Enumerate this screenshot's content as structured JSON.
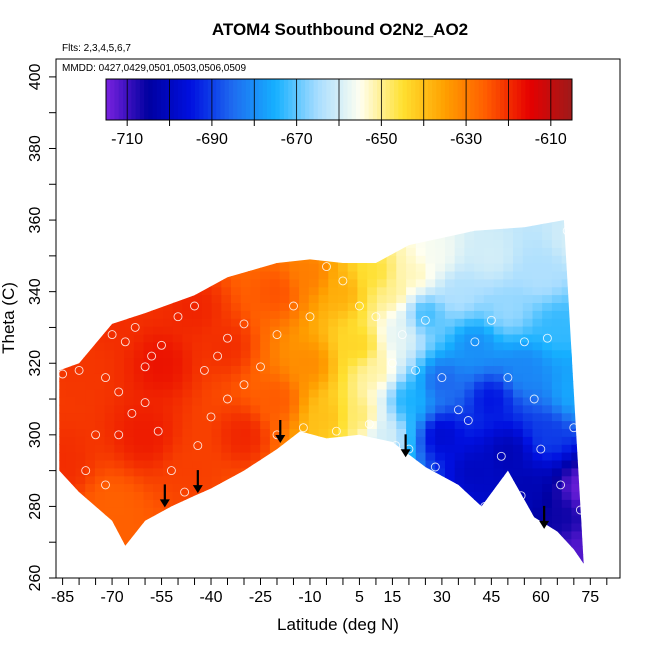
{
  "chart_data": {
    "type": "heatmap",
    "title": "ATOM4 Southbound O2N2_AO2",
    "flights_note": "Flts: 2,3,4,5,6,7",
    "dates_note": "MMDD: 0427,0429,0501,0503,0506,0509",
    "xlabel": "Latitude (deg N)",
    "ylabel": "Theta (C)",
    "xlim": [
      -87,
      84
    ],
    "ylim": [
      260,
      405
    ],
    "x_ticks": [
      -85,
      -70,
      -55,
      -40,
      -25,
      -10,
      5,
      15,
      30,
      45,
      60,
      75
    ],
    "y_ticks": [
      260,
      280,
      300,
      320,
      340,
      360,
      380,
      400
    ],
    "colorbar": {
      "min": -715,
      "max": -605,
      "ticks": [
        -710,
        -690,
        -670,
        -650,
        -630,
        -610
      ],
      "palette": [
        "#7a22e0",
        "#0000a0",
        "#0010e0",
        "#1e6cf0",
        "#16b0ff",
        "#a8ddff",
        "#fffff0",
        "#ffe030",
        "#ffa000",
        "#ff5a00",
        "#e60000",
        "#9e1a1a"
      ]
    },
    "boundary_top": [
      [
        -86,
        318
      ],
      [
        -80,
        320
      ],
      [
        -70,
        331
      ],
      [
        -60,
        334
      ],
      [
        -45,
        339
      ],
      [
        -35,
        344
      ],
      [
        -20,
        348
      ],
      [
        -10,
        349
      ],
      [
        0,
        348
      ],
      [
        10,
        348
      ],
      [
        20,
        353
      ],
      [
        30,
        355
      ],
      [
        40,
        357
      ],
      [
        55,
        358
      ],
      [
        67,
        360
      ]
    ],
    "boundary_bottom": [
      [
        -86,
        290
      ],
      [
        -80,
        284
      ],
      [
        -70,
        276
      ],
      [
        -66,
        269
      ],
      [
        -60,
        276
      ],
      [
        -52,
        280
      ],
      [
        -45,
        283
      ],
      [
        -40,
        285
      ],
      [
        -30,
        290
      ],
      [
        -20,
        296
      ],
      [
        -13,
        301
      ],
      [
        -5,
        299
      ],
      [
        5,
        300
      ],
      [
        15,
        298
      ],
      [
        25,
        291
      ],
      [
        35,
        286
      ],
      [
        42,
        280
      ],
      [
        50,
        290
      ],
      [
        58,
        277
      ],
      [
        65,
        273
      ],
      [
        70,
        268
      ],
      [
        73,
        264
      ]
    ],
    "observations": [
      [
        -85,
        317
      ],
      [
        -80,
        318
      ],
      [
        -75,
        300
      ],
      [
        -72,
        316
      ],
      [
        -70,
        328
      ],
      [
        -68,
        312
      ],
      [
        -66,
        326
      ],
      [
        -63,
        330
      ],
      [
        -60,
        319
      ],
      [
        -58,
        322
      ],
      [
        -55,
        325
      ],
      [
        -50,
        333
      ],
      [
        -45,
        336
      ],
      [
        -42,
        318
      ],
      [
        -38,
        322
      ],
      [
        -35,
        327
      ],
      [
        -30,
        331
      ],
      [
        -25,
        319
      ],
      [
        -20,
        328
      ],
      [
        -15,
        336
      ],
      [
        -10,
        333
      ],
      [
        -5,
        347
      ],
      [
        0,
        343
      ],
      [
        5,
        336
      ],
      [
        10,
        333
      ],
      [
        15,
        320
      ],
      [
        18,
        328
      ],
      [
        22,
        318
      ],
      [
        25,
        332
      ],
      [
        30,
        316
      ],
      [
        35,
        307
      ],
      [
        40,
        326
      ],
      [
        45,
        332
      ],
      [
        50,
        316
      ],
      [
        55,
        326
      ],
      [
        58,
        310
      ],
      [
        62,
        327
      ],
      [
        68,
        357
      ],
      [
        70,
        302
      ],
      [
        73,
        291
      ],
      [
        -78,
        290
      ],
      [
        -72,
        286
      ],
      [
        -68,
        300
      ],
      [
        -64,
        306
      ],
      [
        -60,
        309
      ],
      [
        -56,
        301
      ],
      [
        -52,
        290
      ],
      [
        -48,
        284
      ],
      [
        -44,
        297
      ],
      [
        -40,
        305
      ],
      [
        -35,
        310
      ],
      [
        -30,
        314
      ],
      [
        -20,
        300
      ],
      [
        -12,
        302
      ],
      [
        -2,
        301
      ],
      [
        8,
        303
      ],
      [
        16,
        297
      ],
      [
        20,
        296
      ],
      [
        28,
        291
      ],
      [
        38,
        304
      ],
      [
        43,
        280
      ],
      [
        48,
        294
      ],
      [
        54,
        283
      ],
      [
        60,
        296
      ],
      [
        66,
        286
      ],
      [
        72,
        279
      ]
    ],
    "arrows": [
      [
        -54,
        280
      ],
      [
        -44,
        284
      ],
      [
        -19,
        298
      ],
      [
        19,
        294
      ],
      [
        61,
        274
      ]
    ],
    "field_sources": [
      [
        -85,
        292,
        -620
      ],
      [
        -80,
        320,
        -621
      ],
      [
        -70,
        280,
        -626
      ],
      [
        -70,
        332,
        -620
      ],
      [
        -60,
        300,
        -618
      ],
      [
        -55,
        320,
        -617
      ],
      [
        -45,
        335,
        -619
      ],
      [
        -45,
        290,
        -622
      ],
      [
        -35,
        325,
        -620
      ],
      [
        -30,
        300,
        -619
      ],
      [
        -20,
        340,
        -624
      ],
      [
        -20,
        310,
        -625
      ],
      [
        -10,
        345,
        -630
      ],
      [
        -10,
        320,
        -632
      ],
      [
        -5,
        305,
        -640
      ],
      [
        0,
        340,
        -637
      ],
      [
        5,
        325,
        -643
      ],
      [
        5,
        305,
        -648
      ],
      [
        10,
        345,
        -645
      ],
      [
        10,
        318,
        -651
      ],
      [
        12,
        300,
        -660
      ],
      [
        15,
        340,
        -650
      ],
      [
        17,
        328,
        -658
      ],
      [
        20,
        310,
        -675
      ],
      [
        22,
        345,
        -652
      ],
      [
        25,
        334,
        -673
      ],
      [
        28,
        350,
        -656
      ],
      [
        30,
        315,
        -686
      ],
      [
        30,
        300,
        -698
      ],
      [
        35,
        340,
        -664
      ],
      [
        40,
        325,
        -680
      ],
      [
        40,
        290,
        -700
      ],
      [
        45,
        350,
        -660
      ],
      [
        45,
        310,
        -695
      ],
      [
        50,
        335,
        -666
      ],
      [
        50,
        295,
        -702
      ],
      [
        55,
        318,
        -681
      ],
      [
        55,
        285,
        -702
      ],
      [
        60,
        345,
        -664
      ],
      [
        62,
        300,
        -690
      ],
      [
        65,
        330,
        -673
      ],
      [
        66,
        278,
        -706
      ],
      [
        70,
        355,
        -660
      ],
      [
        70,
        312,
        -676
      ],
      [
        72,
        285,
        -714
      ],
      [
        72,
        268,
        -712
      ]
    ]
  }
}
